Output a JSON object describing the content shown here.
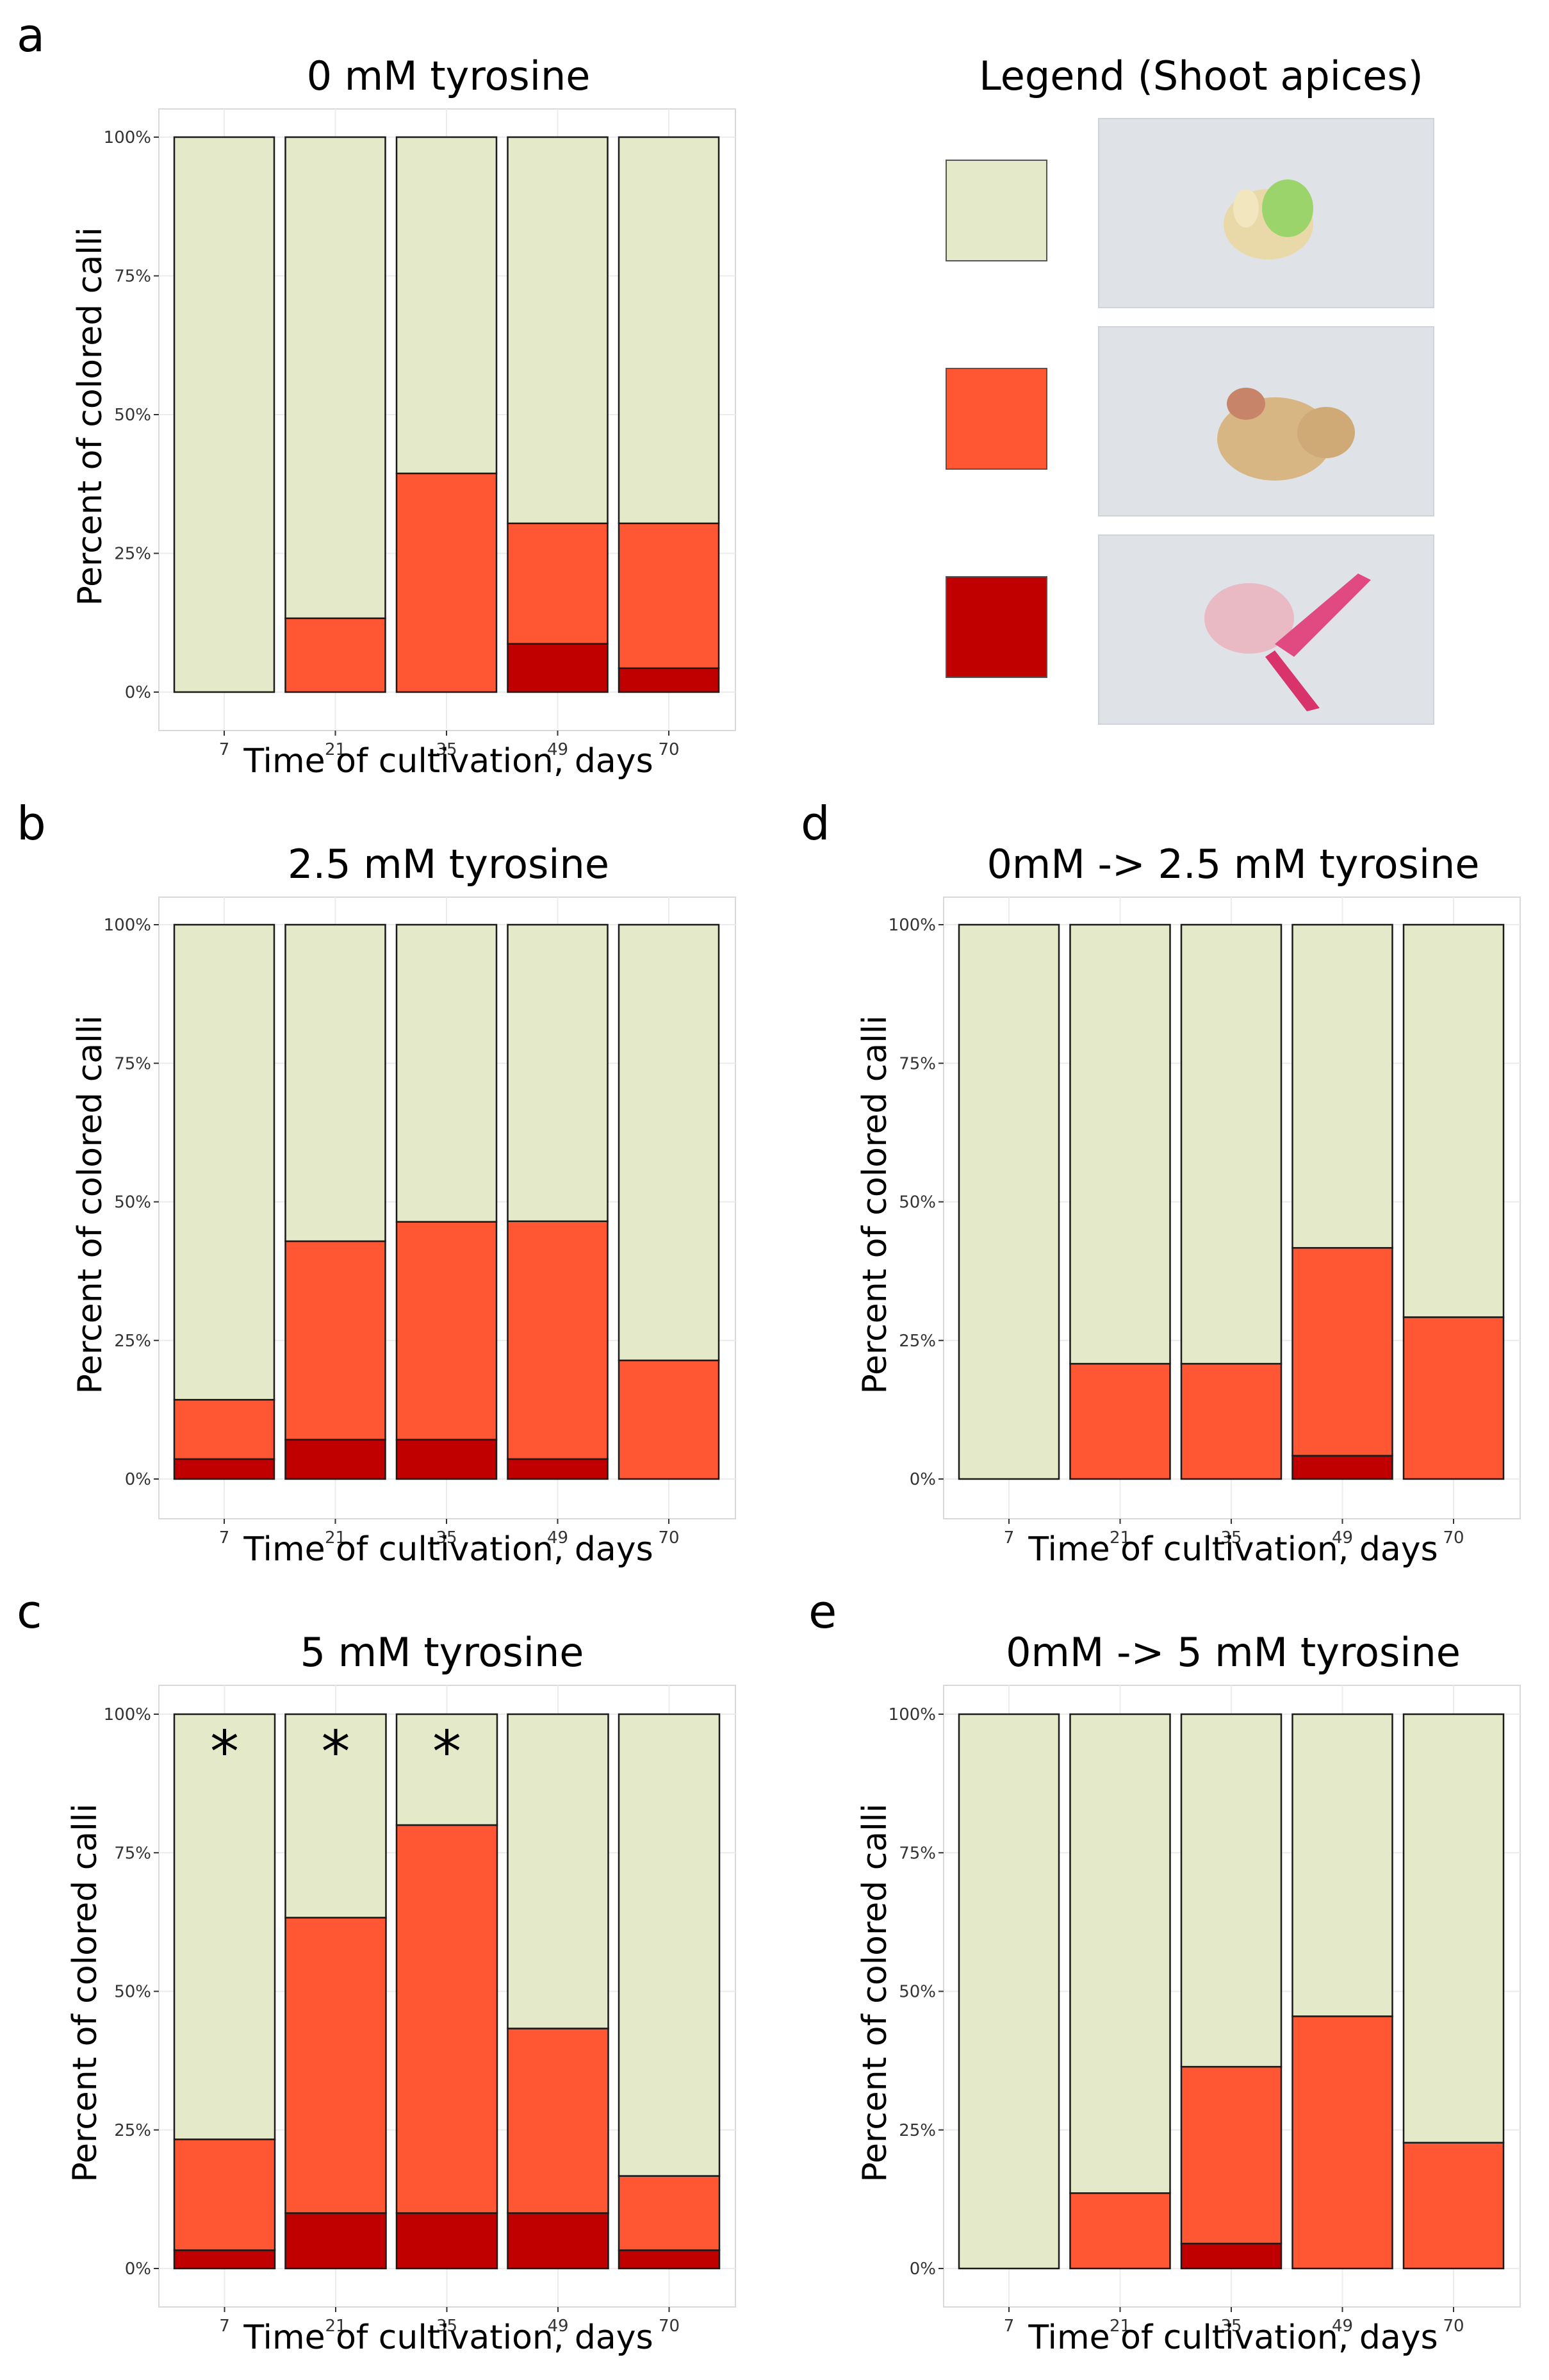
{
  "colors": {
    "uncolored": "#e4e9c9",
    "partial": "#ff5733",
    "full": "#c00000",
    "panel_bg": "#ffffff",
    "grid": "#ececec",
    "frame": "#d9d9d9"
  },
  "legend": {
    "title": "Legend (Shoot apices)",
    "entries": [
      {
        "key": "uncolored",
        "color": "#e4e9c9",
        "photo": "shoot-apex-green-photo"
      },
      {
        "key": "partial",
        "color": "#ff5733",
        "photo": "shoot-apex-partially-colored-photo"
      },
      {
        "key": "full",
        "color": "#c00000",
        "photo": "shoot-apex-red-photo"
      }
    ]
  },
  "chart_data": [
    {
      "panel": "a",
      "type": "bar",
      "stacked": true,
      "title": "0 mM tyrosine",
      "xlabel": "Time of cultivation, days",
      "ylabel": "Percent of colored calli",
      "categories": [
        "7",
        "21",
        "35",
        "49",
        "70"
      ],
      "yticks": [
        "0%",
        "25%",
        "50%",
        "75%",
        "100%"
      ],
      "ylim": [
        0,
        100
      ],
      "series": [
        {
          "name": "full",
          "values": [
            0,
            0,
            0,
            8.7,
            4.3
          ]
        },
        {
          "name": "partial",
          "values": [
            0,
            13.3,
            39.4,
            21.7,
            26.1
          ]
        },
        {
          "name": "uncolored",
          "values": [
            100,
            86.7,
            60.6,
            69.6,
            69.6
          ]
        }
      ],
      "significance": [
        "",
        "",
        "",
        "",
        ""
      ]
    },
    {
      "panel": "b",
      "type": "bar",
      "stacked": true,
      "title": "2.5 mM tyrosine",
      "xlabel": "Time of cultivation, days",
      "ylabel": "Percent of colored calli",
      "categories": [
        "7",
        "21",
        "35",
        "49",
        "70"
      ],
      "yticks": [
        "0%",
        "25%",
        "50%",
        "75%",
        "100%"
      ],
      "ylim": [
        0,
        100
      ],
      "series": [
        {
          "name": "full",
          "values": [
            3.6,
            7.1,
            7.1,
            3.6,
            0
          ]
        },
        {
          "name": "partial",
          "values": [
            10.7,
            35.8,
            39.3,
            42.9,
            21.4
          ]
        },
        {
          "name": "uncolored",
          "values": [
            85.7,
            57.1,
            53.6,
            53.5,
            78.6
          ]
        }
      ],
      "significance": [
        "",
        "",
        "",
        "",
        ""
      ]
    },
    {
      "panel": "c",
      "type": "bar",
      "stacked": true,
      "title": "5 mM tyrosine",
      "xlabel": "Time of cultivation, days",
      "ylabel": "Percent of colored calli",
      "categories": [
        "7",
        "21",
        "35",
        "49",
        "70"
      ],
      "yticks": [
        "0%",
        "25%",
        "50%",
        "75%",
        "100%"
      ],
      "ylim": [
        0,
        100
      ],
      "series": [
        {
          "name": "full",
          "values": [
            3.3,
            10,
            10,
            10,
            3.3
          ]
        },
        {
          "name": "partial",
          "values": [
            20,
            53.3,
            70,
            33.3,
            13.4
          ]
        },
        {
          "name": "uncolored",
          "values": [
            76.7,
            36.7,
            20,
            56.7,
            83.3
          ]
        }
      ],
      "significance": [
        "*",
        "*",
        "*",
        "",
        ""
      ]
    },
    {
      "panel": "d",
      "type": "bar",
      "stacked": true,
      "title": "0mM -> 2.5 mM tyrosine",
      "xlabel": "Time of cultivation, days",
      "ylabel": "Percent of colored calli",
      "categories": [
        "7",
        "21",
        "35",
        "49",
        "70"
      ],
      "yticks": [
        "0%",
        "25%",
        "50%",
        "75%",
        "100%"
      ],
      "ylim": [
        0,
        100
      ],
      "series": [
        {
          "name": "full",
          "values": [
            0,
            0,
            0,
            4.2,
            0
          ]
        },
        {
          "name": "partial",
          "values": [
            0,
            20.8,
            20.8,
            37.5,
            29.2
          ]
        },
        {
          "name": "uncolored",
          "values": [
            100,
            79.2,
            79.2,
            58.3,
            70.8
          ]
        }
      ],
      "significance": [
        "",
        "",
        "",
        "",
        ""
      ]
    },
    {
      "panel": "e",
      "type": "bar",
      "stacked": true,
      "title": "0mM -> 5 mM tyrosine",
      "xlabel": "Time of cultivation, days",
      "ylabel": "Percent of colored calli",
      "categories": [
        "7",
        "21",
        "35",
        "49",
        "70"
      ],
      "yticks": [
        "0%",
        "25%",
        "50%",
        "75%",
        "100%"
      ],
      "ylim": [
        0,
        100
      ],
      "series": [
        {
          "name": "full",
          "values": [
            0,
            0,
            4.5,
            0,
            0
          ]
        },
        {
          "name": "partial",
          "values": [
            0,
            13.6,
            31.9,
            45.5,
            22.7
          ]
        },
        {
          "name": "uncolored",
          "values": [
            100,
            86.4,
            63.6,
            54.5,
            77.3
          ]
        }
      ],
      "significance": [
        "",
        "",
        "",
        "",
        ""
      ]
    }
  ]
}
